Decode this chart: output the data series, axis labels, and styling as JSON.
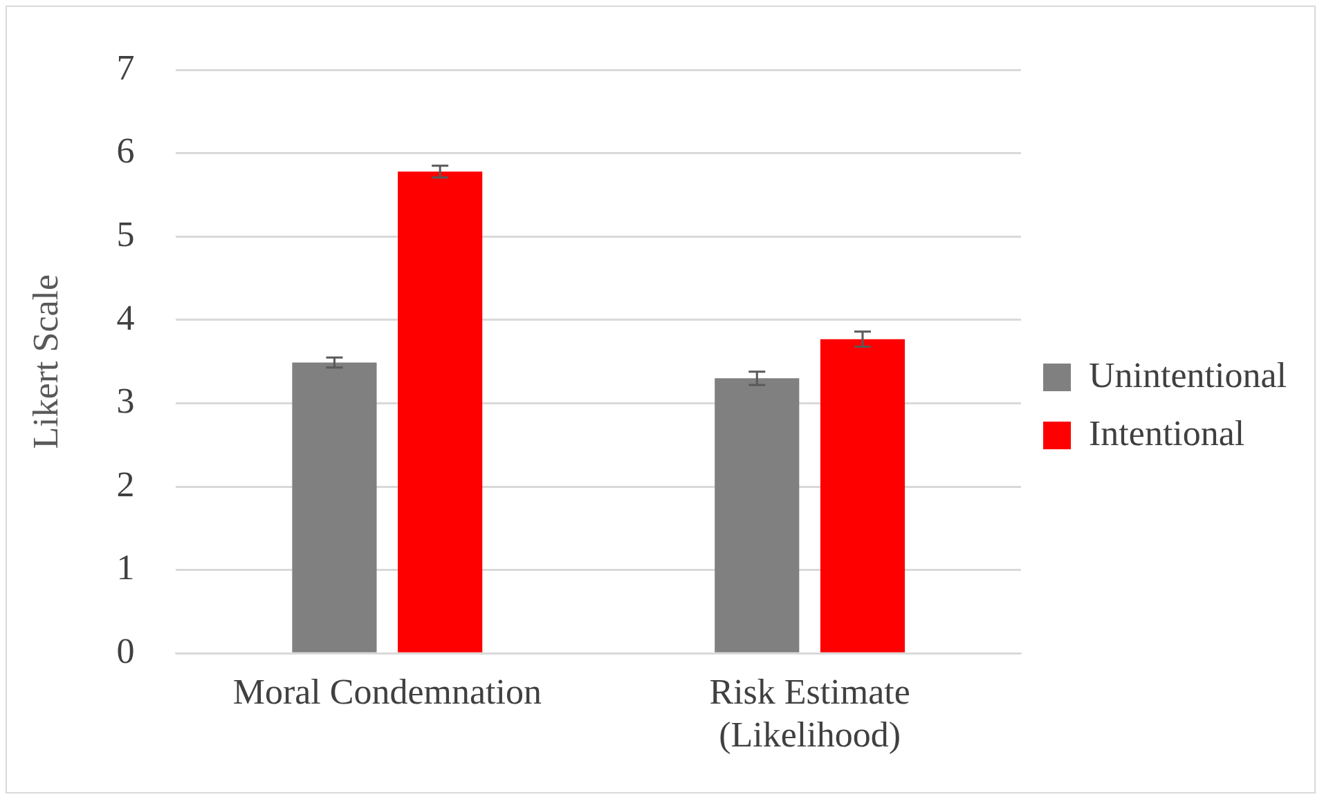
{
  "chart_data": {
    "type": "bar",
    "ylabel": "Likert Scale",
    "categories": [
      "Moral Condemnation",
      "Risk Estimate\n(Likelihood)"
    ],
    "series": [
      {
        "name": "Unintentional",
        "color": "#808080",
        "values": [
          3.49,
          3.3
        ],
        "errors": [
          0.06,
          0.08
        ]
      },
      {
        "name": "Intentional",
        "color": "#ff0000",
        "values": [
          5.78,
          3.77
        ],
        "errors": [
          0.07,
          0.09
        ]
      }
    ],
    "ylim": [
      0,
      7
    ],
    "yticks": [
      0,
      1,
      2,
      3,
      4,
      5,
      6,
      7
    ],
    "grid": "y",
    "legend": "right"
  }
}
